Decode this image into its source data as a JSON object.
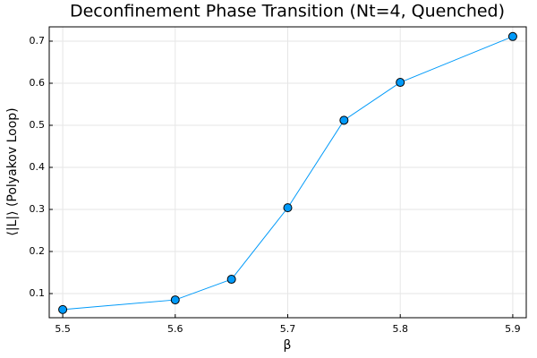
{
  "chart_data": {
    "type": "errorline",
    "title": "Deconfinement Phase Transition (Nt=4, Quenched)",
    "x_label": "β",
    "y_label": "⟨|L|⟩ (Polyakov Loop)",
    "x": [
      5.5,
      5.6,
      5.65,
      5.7,
      5.75,
      5.8,
      5.9
    ],
    "values": [
      0.062,
      0.085,
      0.134,
      0.304,
      0.512,
      0.602,
      0.711
    ],
    "errors": [
      0.003,
      0.003,
      0.003,
      0.005,
      0.005,
      0.004,
      0.004
    ],
    "color": "#009af9",
    "xlim": [
      5.488,
      5.912
    ],
    "ylim": [
      0.0426,
      0.734
    ],
    "xticks": [
      5.5,
      5.6,
      5.7,
      5.8,
      5.9
    ],
    "yticks": [
      0.1,
      0.2,
      0.3,
      0.4,
      0.5,
      0.6,
      0.7
    ],
    "grid": true
  }
}
